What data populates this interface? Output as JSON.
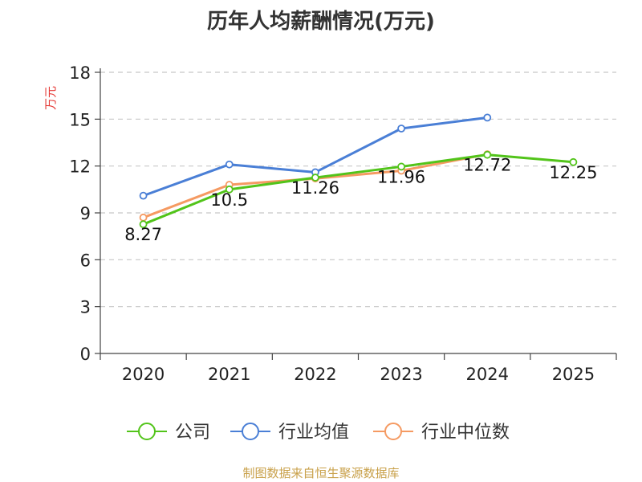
{
  "page": {
    "title": "历年人均薪酬情况(万元)",
    "source": "制图数据来自恒生聚源数据库"
  },
  "chart_data": {
    "type": "line",
    "title": "历年人均薪酬情况(万元)",
    "ylabel": "万元",
    "xlabel": "",
    "categories": [
      "2020",
      "2021",
      "2022",
      "2023",
      "2024",
      "2025"
    ],
    "ylim": [
      0,
      18
    ],
    "yticks": [
      0,
      3,
      6,
      9,
      12,
      15,
      18
    ],
    "grid": true,
    "legend_position": "bottom",
    "series": [
      {
        "name": "公司",
        "color": "#52c41a",
        "values": [
          8.27,
          10.5,
          11.26,
          11.96,
          12.72,
          12.25
        ],
        "labels": [
          "8.27",
          "10.5",
          "11.26",
          "11.96",
          "12.72",
          "12.25"
        ]
      },
      {
        "name": "行业均值",
        "color": "#4a7fd6",
        "values": [
          10.1,
          12.1,
          11.6,
          14.4,
          15.1,
          null
        ]
      },
      {
        "name": "行业中位数",
        "color": "#f59a62",
        "values": [
          8.7,
          10.8,
          11.2,
          11.7,
          12.75,
          null
        ]
      }
    ]
  }
}
